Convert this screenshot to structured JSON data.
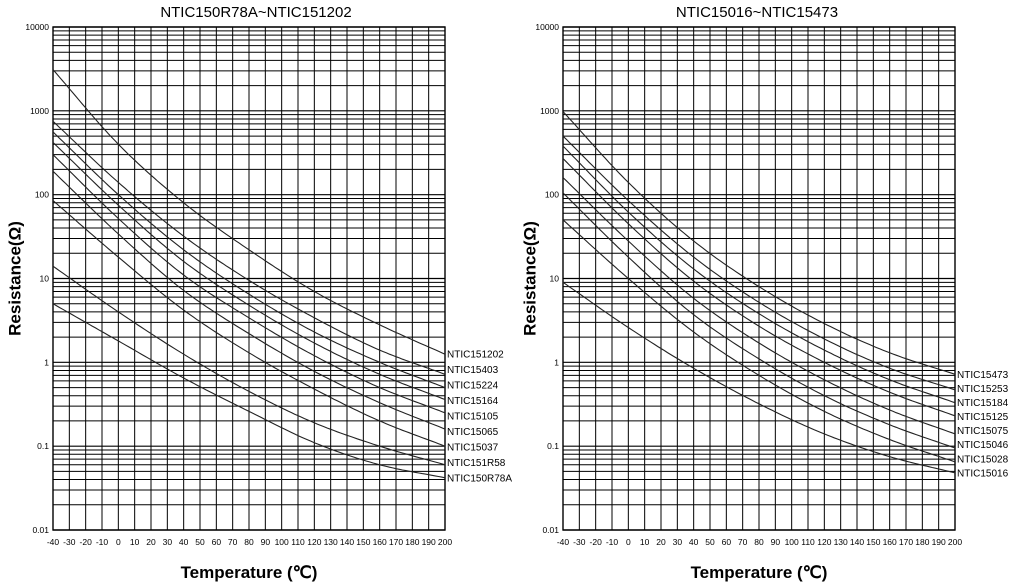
{
  "chart_data": [
    {
      "type": "line",
      "title": "NTIC150R78A~NTIC151202",
      "xlabel": "Temperature (℃)",
      "ylabel": "Resistance(Ω)",
      "x_scale": "linear",
      "y_scale": "log",
      "xlim": [
        -40,
        200
      ],
      "ylim": [
        0.01,
        10000
      ],
      "x_ticks": [
        "-40",
        "-30",
        "-20",
        "-10",
        "0",
        "10",
        "20",
        "30",
        "40",
        "50",
        "60",
        "70",
        "80",
        "90",
        "100",
        "110",
        "120",
        "130",
        "140",
        "150",
        "160",
        "170",
        "180",
        "190",
        "200"
      ],
      "y_ticks": [
        "10000",
        "1000",
        "100",
        "10",
        "1",
        "0.1",
        "0.01"
      ],
      "grid": true,
      "x": [
        -40,
        0,
        40,
        80,
        120,
        160,
        200
      ],
      "series": [
        {
          "name": "NTIC151202",
          "values": [
            3100,
            400,
            80,
            22,
            7,
            2.8,
            1.25
          ]
        },
        {
          "name": "NTIC15403",
          "values": [
            750,
            140,
            32,
            9.5,
            3.4,
            1.4,
            0.72
          ]
        },
        {
          "name": "NTIC15224",
          "values": [
            560,
            100,
            22,
            6.5,
            2.3,
            1.0,
            0.5
          ]
        },
        {
          "name": "NTIC15164",
          "values": [
            420,
            75,
            16,
            4.8,
            1.7,
            0.72,
            0.36
          ]
        },
        {
          "name": "NTIC15105",
          "values": [
            300,
            52,
            11,
            3.4,
            1.2,
            0.5,
            0.25
          ]
        },
        {
          "name": "NTIC15065",
          "values": [
            190,
            34,
            7.2,
            2.2,
            0.78,
            0.33,
            0.16
          ]
        },
        {
          "name": "NTIC15037",
          "values": [
            85,
            18,
            4.2,
            1.3,
            0.48,
            0.2,
            0.1
          ]
        },
        {
          "name": "NTIC151R58",
          "values": [
            14,
            4.0,
            1.25,
            0.45,
            0.19,
            0.1,
            0.06
          ]
        },
        {
          "name": "NTIC150R78A",
          "values": [
            5.0,
            1.8,
            0.65,
            0.26,
            0.11,
            0.06,
            0.042
          ]
        }
      ]
    },
    {
      "type": "line",
      "title": "NTIC15016~NTIC15473",
      "xlabel": "Temperature (℃)",
      "ylabel": "Resistance(Ω)",
      "x_scale": "linear",
      "y_scale": "log",
      "xlim": [
        -40,
        200
      ],
      "ylim": [
        0.01,
        10000
      ],
      "x_ticks": [
        "-40",
        "-30",
        "-20",
        "-10",
        "0",
        "10",
        "20",
        "30",
        "40",
        "50",
        "60",
        "70",
        "80",
        "90",
        "100",
        "110",
        "120",
        "130",
        "140",
        "150",
        "160",
        "170",
        "180",
        "190",
        "200"
      ],
      "y_ticks": [
        "10000",
        "1000",
        "100",
        "10",
        "1",
        "0.1",
        "0.01"
      ],
      "grid": true,
      "x": [
        -40,
        0,
        40,
        80,
        120,
        160,
        200
      ],
      "series": [
        {
          "name": "NTIC15473",
          "values": [
            980,
            140,
            28,
            8,
            2.9,
            1.3,
            0.72
          ]
        },
        {
          "name": "NTIC15253",
          "values": [
            500,
            85,
            18,
            5.2,
            1.9,
            0.85,
            0.47
          ]
        },
        {
          "name": "NTIC15184",
          "values": [
            380,
            62,
            13,
            3.8,
            1.4,
            0.62,
            0.33
          ]
        },
        {
          "name": "NTIC15125",
          "values": [
            270,
            45,
            9.3,
            2.7,
            1.0,
            0.44,
            0.23
          ]
        },
        {
          "name": "NTIC15075",
          "values": [
            160,
            28,
            5.8,
            1.7,
            0.62,
            0.27,
            0.14
          ]
        },
        {
          "name": "NTIC15046",
          "values": [
            105,
            18,
            3.7,
            1.1,
            0.4,
            0.18,
            0.095
          ]
        },
        {
          "name": "NTIC15028",
          "values": [
            50,
            10,
            2.3,
            0.7,
            0.26,
            0.12,
            0.065
          ]
        },
        {
          "name": "NTIC15016",
          "values": [
            9,
            2.6,
            0.85,
            0.32,
            0.14,
            0.075,
            0.048
          ]
        }
      ]
    }
  ]
}
